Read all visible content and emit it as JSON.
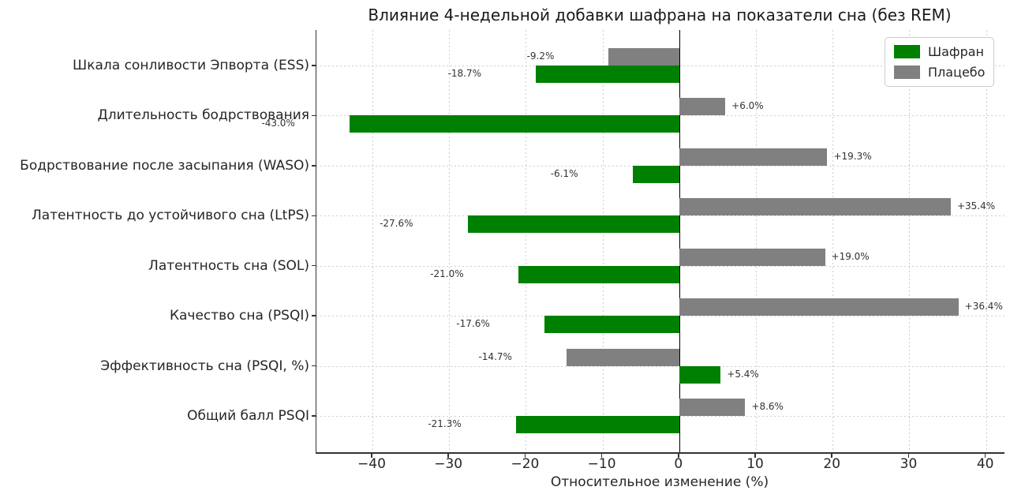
{
  "title": "Влияние 4-недельной добавки шафрана на показатели сна (без REM)",
  "colors": {
    "saffron": "#008000",
    "placebo": "#808080",
    "text": "#262626",
    "value_label": "#333333",
    "grid": "#cdcdcd",
    "spine": "#333333",
    "zero_line": "#000000",
    "legend_border": "#cccccc"
  },
  "legend": {
    "items": [
      {
        "label": "Шафран",
        "color_key": "saffron"
      },
      {
        "label": "Плацебо",
        "color_key": "placebo"
      }
    ]
  },
  "chart_data": {
    "type": "bar",
    "orientation": "horizontal",
    "title": "Влияние 4-недельной добавки шафрана на показатели сна (без REM)",
    "xlabel": "Относительное изменение (%)",
    "ylabel": "",
    "grid": true,
    "legend_position": "upper right",
    "xlim": [
      -47.3,
      42.4
    ],
    "xticks": [
      -40,
      -30,
      -20,
      -10,
      0,
      10,
      20,
      30,
      40
    ],
    "xtick_labels": [
      "−40",
      "−30",
      "−20",
      "−10",
      "0",
      "10",
      "20",
      "30",
      "40"
    ],
    "categories": [
      "Шкала сонливости Эпворта (ESS)",
      "Длительность бодрствования",
      "Бодрствование после засыпания (WASO)",
      "Латентность до устойчивого сна (LtPS)",
      "Латентность сна (SOL)",
      "Качество сна (PSQI)",
      "Эффективность сна (PSQI, %)",
      "Общий балл PSQI"
    ],
    "series": [
      {
        "name": "Шафран",
        "color": "#008000",
        "values": [
          -18.7,
          -43.0,
          -6.1,
          -27.6,
          -21.0,
          -17.6,
          5.4,
          -21.3
        ],
        "labels": [
          "-18.7%",
          "-43.0%",
          "-6.1%",
          "-27.6%",
          "-21.0%",
          "-17.6%",
          "+5.4%",
          "-21.3%"
        ]
      },
      {
        "name": "Плацебо",
        "color": "#808080",
        "values": [
          -9.2,
          6.0,
          19.3,
          35.4,
          19.0,
          36.4,
          -14.7,
          8.6
        ],
        "labels": [
          "-9.2%",
          "+6.0%",
          "+19.3%",
          "+35.4%",
          "+19.0%",
          "+36.4%",
          "-14.7%",
          "+8.6%"
        ]
      }
    ]
  }
}
